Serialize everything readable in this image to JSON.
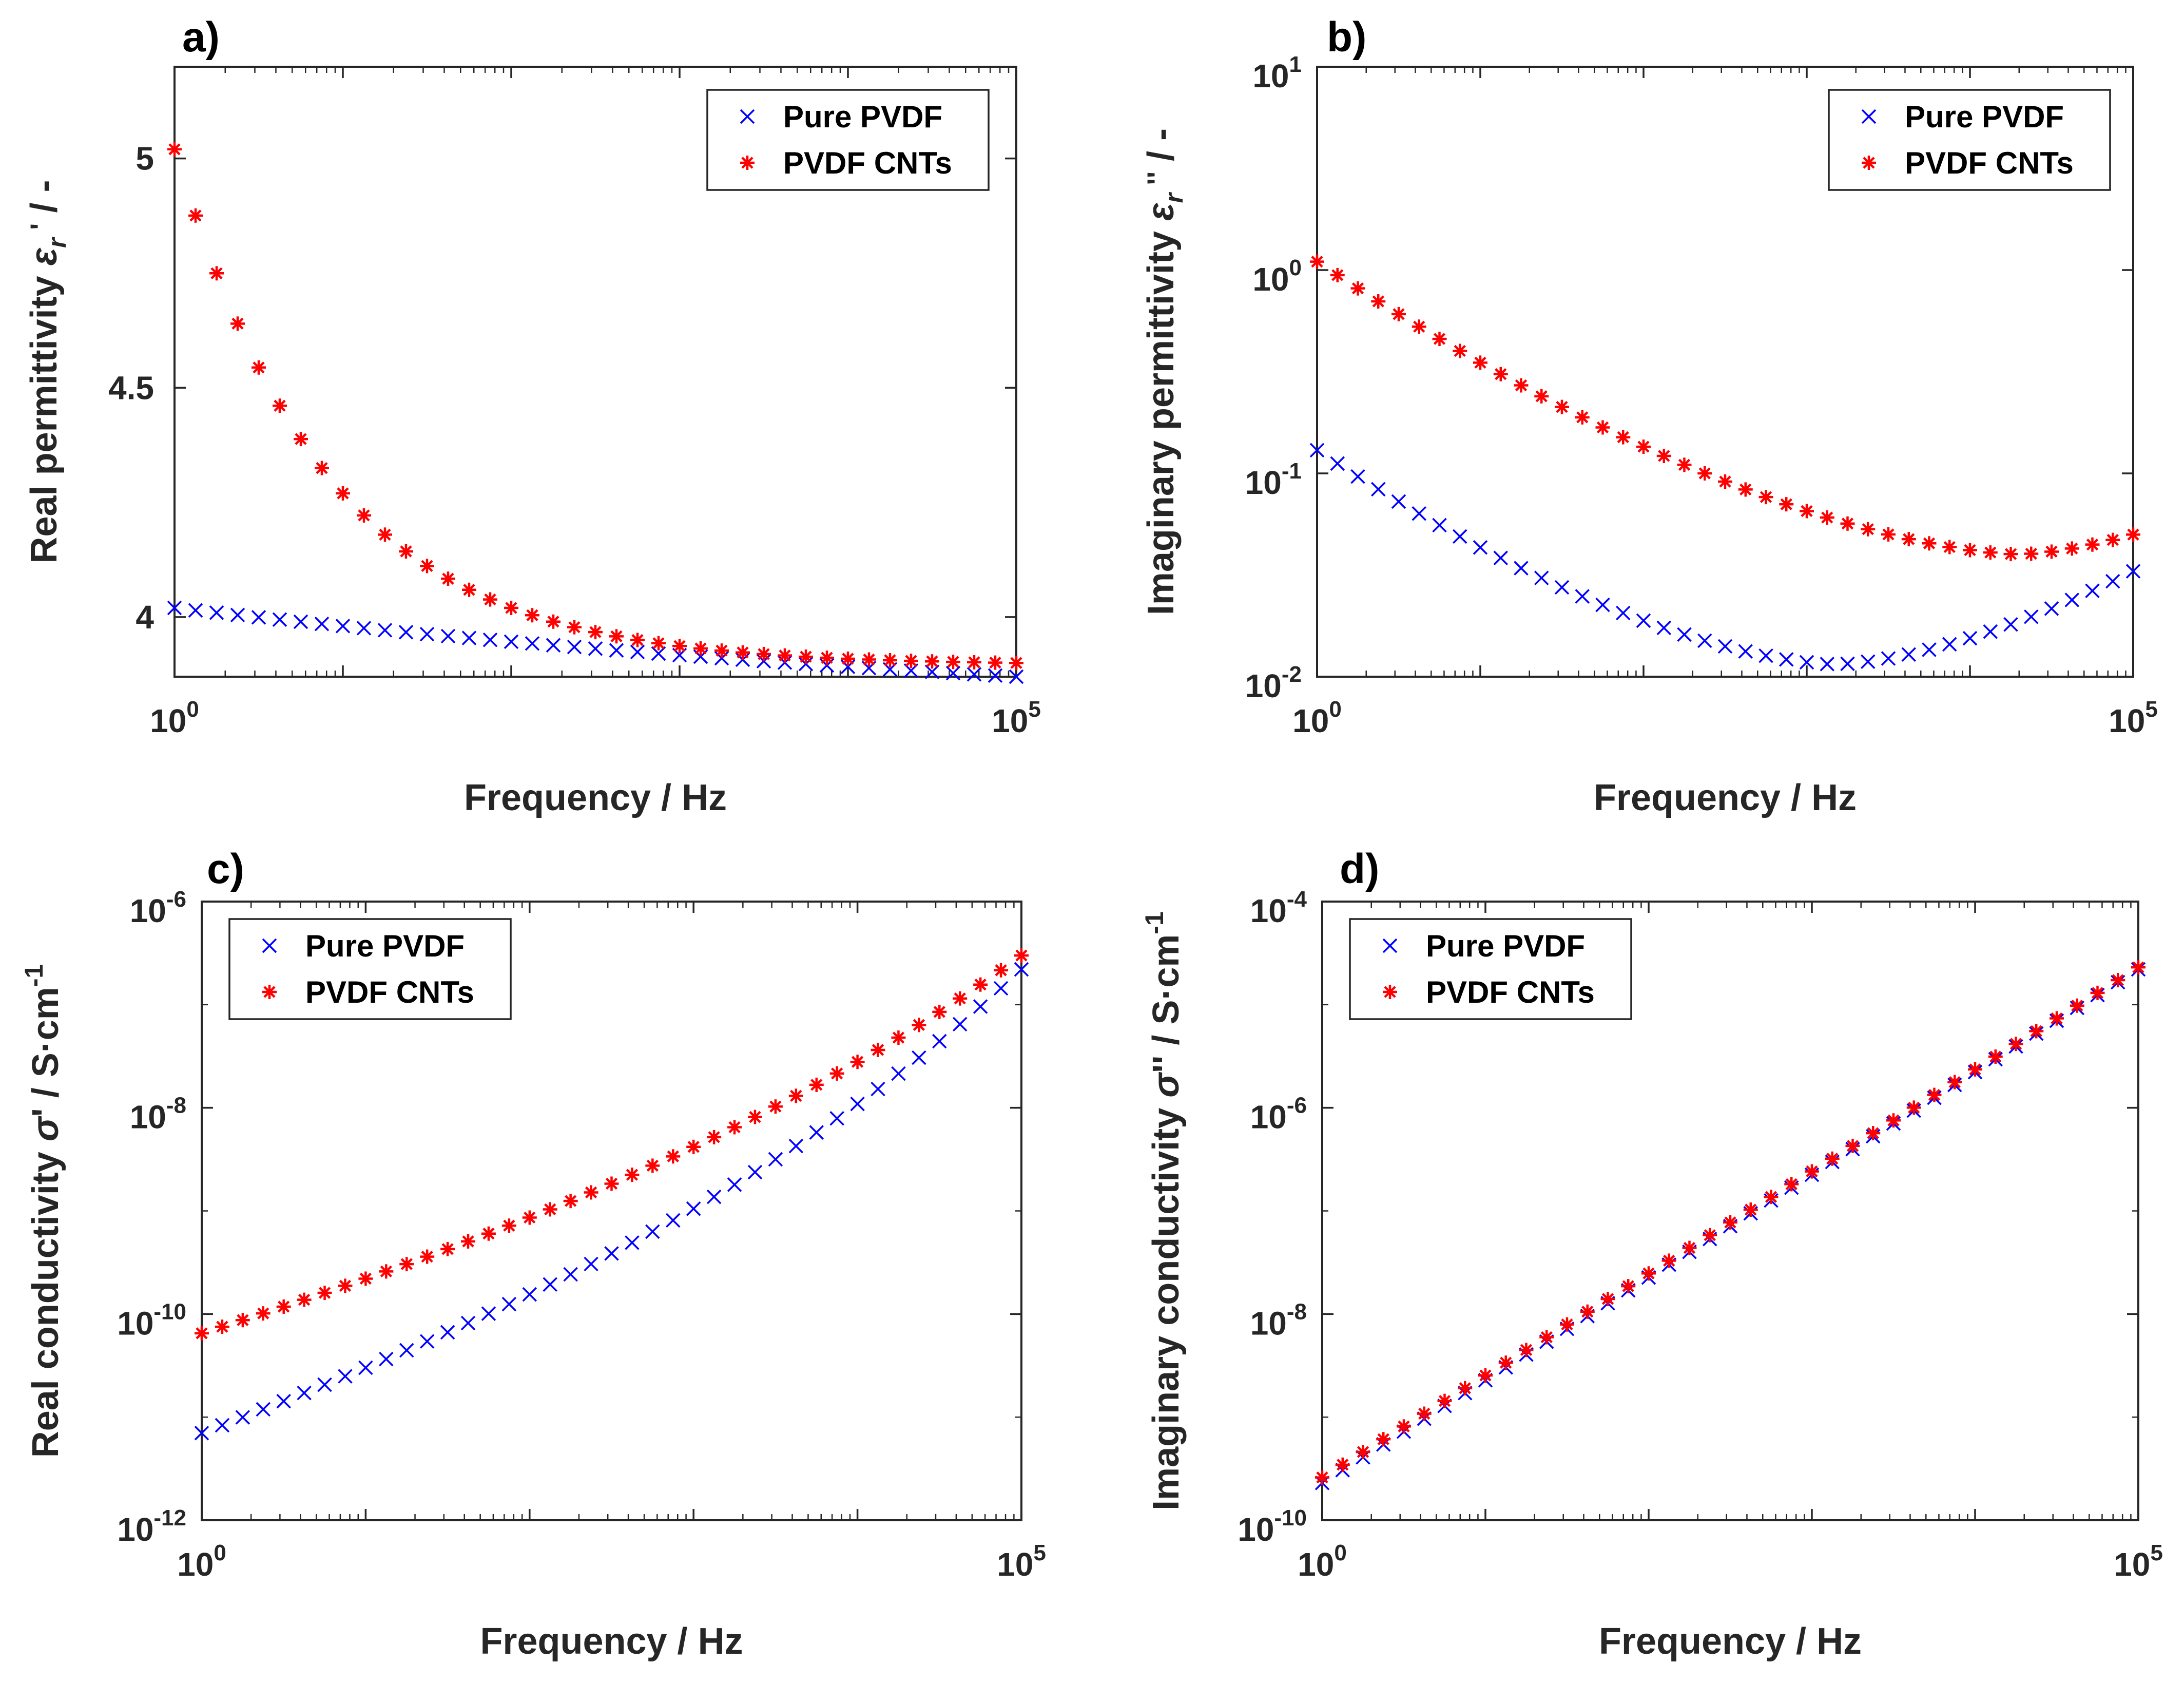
{
  "chart_data": [
    {
      "panel": "a)",
      "type": "scatter",
      "xscale": "log",
      "yscale": "linear",
      "xlim": [
        1,
        100000
      ],
      "ylim": [
        3.87,
        5.2
      ],
      "x_ticks": [
        {
          "base": "10",
          "exp": "0"
        },
        {
          "base": "10",
          "exp": "5"
        }
      ],
      "y_ticks": [
        {
          "value": 4,
          "label": "4"
        },
        {
          "value": 4.5,
          "label": "4.5"
        },
        {
          "value": 5,
          "label": "5"
        }
      ],
      "xlabel": "Frequency / Hz",
      "ylabel": {
        "text": "Real permittivity ",
        "symbol": "ε",
        "sub": "r",
        "mark": "'",
        "suffix": " / -"
      },
      "legend_position": "top-right",
      "series": [
        {
          "name": "Pure PVDF",
          "marker": "x",
          "color": "#0000ff",
          "y_start": 4.02,
          "y_end": 3.87,
          "shape": "linear",
          "curve": 0.75
        },
        {
          "name": "PVDF CNTs",
          "marker": "*",
          "color": "#ff0000",
          "y_start": 5.02,
          "y_end": 3.9,
          "shape": "exp",
          "curve": 5.5
        }
      ]
    },
    {
      "panel": "b)",
      "type": "scatter",
      "xscale": "log",
      "yscale": "log",
      "xlim": [
        1,
        100000
      ],
      "ylim": [
        0.01,
        10
      ],
      "x_ticks": [
        {
          "base": "10",
          "exp": "0"
        },
        {
          "base": "10",
          "exp": "5"
        }
      ],
      "y_ticks": [
        {
          "value": 0.01,
          "base": "10",
          "exp": "-2"
        },
        {
          "value": 0.1,
          "base": "10",
          "exp": "-1"
        },
        {
          "value": 1,
          "base": "10",
          "exp": "0"
        },
        {
          "value": 10,
          "base": "10",
          "exp": "1"
        }
      ],
      "xlabel": "Frequency / Hz",
      "ylabel": {
        "text": "Imaginary permittivity ",
        "symbol": "ε",
        "sub": "r",
        "mark": "''",
        "suffix": " / -"
      },
      "legend_position": "top-right",
      "series": [
        {
          "name": "Pure PVDF",
          "marker": "x",
          "color": "#0000ff",
          "y_start": 0.13,
          "y_end": 0.033,
          "shape": "vlog",
          "y_min": 0.0115,
          "x_min": 1500
        },
        {
          "name": "PVDF CNTs",
          "marker": "*",
          "color": "#ff0000",
          "y_start": 1.1,
          "y_end": 0.05,
          "shape": "vlog",
          "y_min": 0.04,
          "x_min": 20000
        }
      ]
    },
    {
      "panel": "c)",
      "type": "scatter",
      "xscale": "log",
      "yscale": "log",
      "xlim": [
        1,
        100000
      ],
      "ylim": [
        1e-12,
        1e-06
      ],
      "x_ticks": [
        {
          "base": "10",
          "exp": "0"
        },
        {
          "base": "10",
          "exp": "5"
        }
      ],
      "y_ticks": [
        {
          "value": 1e-12,
          "base": "10",
          "exp": "-12"
        },
        {
          "value": 1e-10,
          "base": "10",
          "exp": "-10"
        },
        {
          "value": 1e-08,
          "base": "10",
          "exp": "-8"
        },
        {
          "value": 1e-06,
          "base": "10",
          "exp": "-6"
        }
      ],
      "xlabel": "Frequency / Hz",
      "ylabel": {
        "text": "Real conductivity ",
        "symbol": "σ",
        "sub": "",
        "mark": "'",
        "suffix": " / S·cm",
        "sup": "-1"
      },
      "legend_position": "top-left",
      "series": [
        {
          "name": "Pure PVDF",
          "marker": "x",
          "color": "#0000ff",
          "y_start": 7e-12,
          "y_end": 2.2e-07,
          "shape": "logexp",
          "curve": 2.2
        },
        {
          "name": "PVDF CNTs",
          "marker": "*",
          "color": "#ff0000",
          "y_start": 6.5e-11,
          "y_end": 3e-07,
          "shape": "logexp",
          "curve": 2.0
        }
      ]
    },
    {
      "panel": "d)",
      "type": "scatter",
      "xscale": "log",
      "yscale": "log",
      "xlim": [
        1,
        100000
      ],
      "ylim": [
        1e-10,
        0.0001
      ],
      "x_ticks": [
        {
          "base": "10",
          "exp": "0"
        },
        {
          "base": "10",
          "exp": "5"
        }
      ],
      "y_ticks": [
        {
          "value": 1e-10,
          "base": "10",
          "exp": "-10"
        },
        {
          "value": 1e-08,
          "base": "10",
          "exp": "-8"
        },
        {
          "value": 1e-06,
          "base": "10",
          "exp": "-6"
        },
        {
          "value": 0.0001,
          "base": "10",
          "exp": "-4"
        }
      ],
      "xlabel": "Frequency / Hz",
      "ylabel": {
        "text": "Imaginary conductivity ",
        "symbol": "σ",
        "sub": "",
        "mark": "''",
        "suffix": " / S·cm",
        "sup": "-1"
      },
      "legend_position": "top-left",
      "series": [
        {
          "name": "Pure PVDF",
          "marker": "x",
          "color": "#0000ff",
          "y_start": 2.3e-10,
          "y_end": 2.2e-05,
          "shape": "loglinear"
        },
        {
          "name": "PVDF CNTs",
          "marker": "*",
          "color": "#ff0000",
          "y_start": 2.6e-10,
          "y_end": 2.3e-05,
          "shape": "loglinear"
        }
      ]
    }
  ],
  "points_per_series": 41
}
